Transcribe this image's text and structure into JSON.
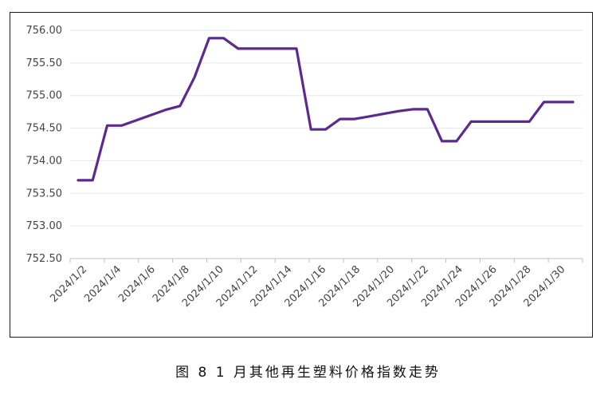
{
  "caption": "图 8  1 月其他再生塑料价格指数走势",
  "colors": {
    "line": "#5b2a91",
    "grid": "#e6e6e6",
    "axis": "#bfbfbf"
  },
  "chart_data": {
    "type": "line",
    "title": "",
    "xlabel": "",
    "ylabel": "",
    "ylim": [
      752.5,
      756.0
    ],
    "yticks": [
      "756.00",
      "755.50",
      "755.00",
      "754.50",
      "754.00",
      "753.50",
      "753.00",
      "752.50"
    ],
    "ytick_values": [
      756.0,
      755.5,
      755.0,
      754.5,
      754.0,
      753.5,
      753.0,
      752.5
    ],
    "xtick_labels": [
      "2024/1/2",
      "2024/1/4",
      "2024/1/6",
      "2024/1/8",
      "2024/1/10",
      "2024/1/12",
      "2024/1/14",
      "2024/1/16",
      "2024/1/18",
      "2024/1/20",
      "2024/1/22",
      "2024/1/24",
      "2024/1/26",
      "2024/1/28",
      "2024/1/30"
    ],
    "grid": true,
    "series": [
      {
        "values": [
          753.7,
          753.7,
          754.54,
          754.54,
          754.62,
          754.7,
          754.78,
          754.84,
          755.28,
          755.88,
          755.88,
          755.72,
          755.72,
          755.72,
          755.72,
          755.72,
          754.48,
          754.48,
          754.64,
          754.64,
          754.68,
          754.72,
          754.76,
          754.79,
          754.79,
          754.3,
          754.3,
          754.6,
          754.6,
          754.6,
          754.6,
          754.6,
          754.9,
          754.9,
          754.9
        ]
      }
    ]
  }
}
